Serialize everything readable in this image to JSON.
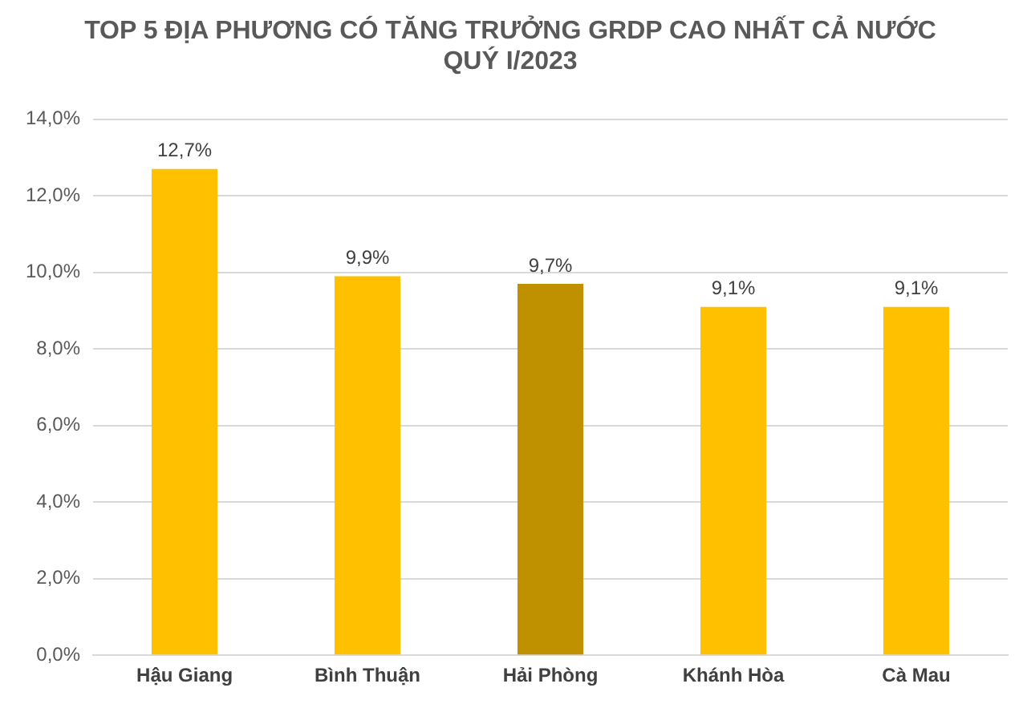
{
  "chart_data": {
    "type": "bar",
    "title": "TOP 5 ĐỊA PHƯƠNG CÓ TĂNG TRƯỞNG GRDP CAO NHẤT CẢ NƯỚC",
    "subtitle": "QUÝ I/2023",
    "categories": [
      "Hậu Giang",
      "Bình Thuận",
      "Hải Phòng",
      "Khánh Hòa",
      "Cà Mau"
    ],
    "values": [
      12.7,
      9.9,
      9.7,
      9.1,
      9.1
    ],
    "colors": [
      "#ffc000",
      "#ffc000",
      "#bf9000",
      "#ffc000",
      "#ffc000"
    ],
    "value_labels": [
      "12,7%",
      "9,9%",
      "9,7%",
      "9,1%",
      "9,1%"
    ],
    "ylim": [
      0,
      14
    ],
    "yticks": [
      {
        "value": 0,
        "label": "0,0%"
      },
      {
        "value": 2,
        "label": "2,0%"
      },
      {
        "value": 4,
        "label": "4,0%"
      },
      {
        "value": 6,
        "label": "6,0%"
      },
      {
        "value": 8,
        "label": "8,0%"
      },
      {
        "value": 10,
        "label": "10,0%"
      },
      {
        "value": 12,
        "label": "12,0%"
      },
      {
        "value": 14,
        "label": "14,0%"
      }
    ],
    "grid": "y",
    "legend": false
  }
}
